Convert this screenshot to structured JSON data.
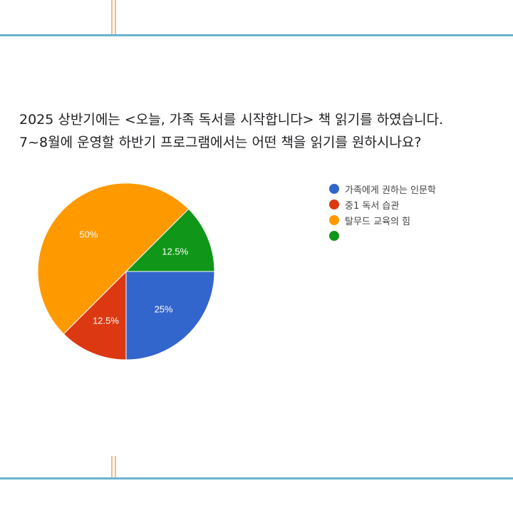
{
  "question": {
    "line1": "2025 상반기에는 <오늘, 가족 독서를 시작합니다> 책 읽기를 하였습니다.",
    "line2": "7~8월에 운영할 하반기 프로그램에서는 어떤 책을 읽기를 원하시나요?"
  },
  "chart_data": {
    "type": "pie",
    "title": "",
    "legend_position": "right",
    "slices": [
      {
        "label": "가족에게 권하는 인문학",
        "value": 25,
        "display": "25%",
        "color": "#3366cc"
      },
      {
        "label": "중1 독서 습관",
        "value": 12.5,
        "display": "12.5%",
        "color": "#dc3912"
      },
      {
        "label": "탈무드 교육의 힘",
        "value": 50,
        "display": "50%",
        "color": "#ff9900"
      },
      {
        "label": "",
        "value": 12.5,
        "display": "12.5%",
        "color": "#109618"
      }
    ]
  }
}
